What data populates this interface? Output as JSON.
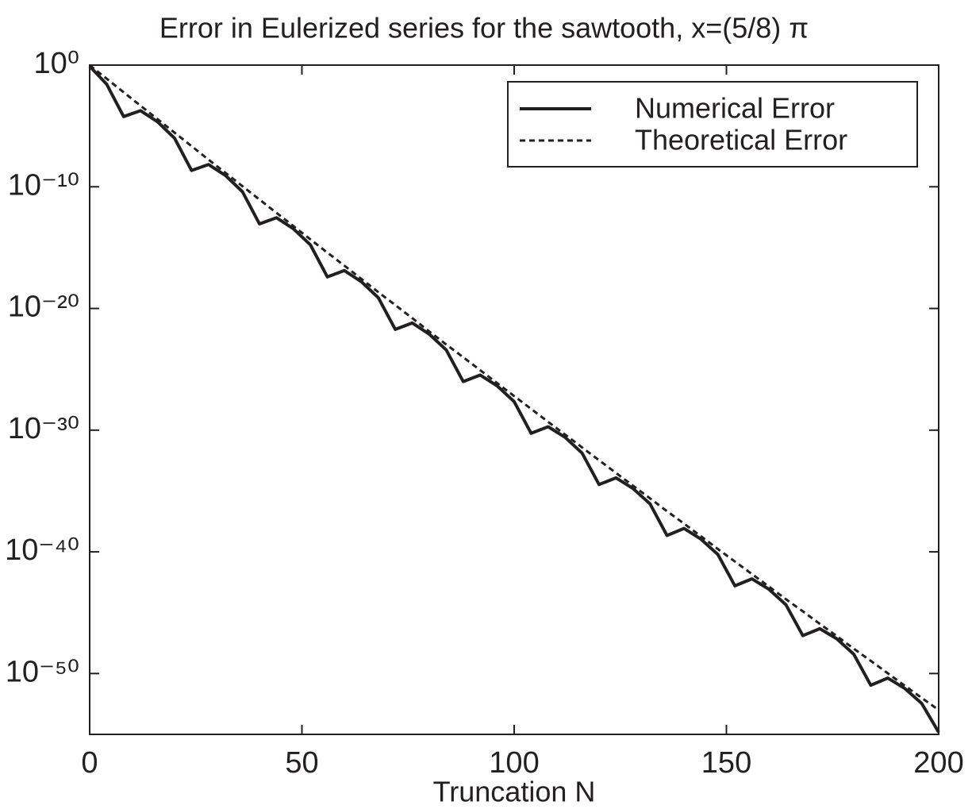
{
  "chart_data": {
    "type": "line",
    "title": "Error in Eulerized series for the sawtooth, x=(5/8) π",
    "x_label": "Truncation N",
    "x": [
      0,
      4,
      8,
      12,
      16,
      20,
      24,
      28,
      32,
      36,
      40,
      44,
      48,
      52,
      56,
      60,
      64,
      68,
      72,
      76,
      80,
      84,
      88,
      92,
      96,
      100,
      104,
      108,
      112,
      116,
      120,
      124,
      128,
      132,
      136,
      140,
      144,
      148,
      152,
      156,
      160,
      164,
      168,
      172,
      176,
      180,
      184,
      188,
      192,
      196,
      200
    ],
    "series": [
      {
        "name": "Numerical Error",
        "color": "#231f20",
        "style": "solid",
        "values": [
          0.8,
          0.027,
          5.9e-05,
          0.00018,
          2.2e-05,
          9.8e-07,
          2.2e-09,
          6.8e-09,
          8.4e-10,
          3.9e-11,
          9e-14,
          2.9e-13,
          3.5e-14,
          1.7e-15,
          3.9e-18,
          1.3e-17,
          1.6e-18,
          7.7e-20,
          1.9e-22,
          6.4e-22,
          7.8e-23,
          3.9e-24,
          9.8e-27,
          3.4e-26,
          4.4e-27,
          2.2e-28,
          5.5e-31,
          1.9e-30,
          2.6e-31,
          1.3e-32,
          3.4e-35,
          1.2e-34,
          1.6e-35,
          8.8e-37,
          2.2e-39,
          8.4e-39,
          1.1e-39,
          6e-41,
          1.6e-43,
          6e-43,
          8.4e-44,
          4.6e-45,
          1.3e-47,
          4.8e-47,
          7.2e-48,
          3.9e-49,
          1.1e-51,
          4.2e-51,
          6e-52,
          3.5e-53,
          1.5e-55
        ]
      },
      {
        "name": "Theoretical Error",
        "color": "#231f20",
        "style": "dashed",
        "values": [
          1,
          0.077,
          0.0059,
          0.00046,
          3.6e-05,
          2.8e-06,
          2.2e-07,
          1.7e-08,
          1.4e-09,
          1.1e-10,
          9e-12,
          7.2e-13,
          5.9e-14,
          4.8e-15,
          3.9e-16,
          3.3e-17,
          2.7e-18,
          2.2e-19,
          1.9e-20,
          1.6e-21,
          1.3e-22,
          1.1e-23,
          9.8e-25,
          8.4e-26,
          7.3e-27,
          6.3e-28,
          5.5e-29,
          4.8e-30,
          4.3e-31,
          3.8e-32,
          3.4e-33,
          3e-34,
          2.7e-35,
          2.5e-36,
          2.2e-37,
          2.1e-38,
          1.9e-39,
          1.7e-40,
          1.6e-41,
          1.5e-42,
          1.4e-43,
          1.3e-44,
          1.3e-45,
          1.2e-46,
          1.2e-47,
          1.1e-48,
          1.1e-49,
          1.05e-50,
          1e-51,
          1e-52,
          1e-53
        ]
      }
    ],
    "xlim": [
      0,
      200
    ],
    "xticks": [
      0,
      50,
      100,
      150,
      200
    ],
    "ylim": [
      1e-55,
      1
    ],
    "ylog": true,
    "yticks": [
      {
        "value": 1,
        "label": "10⁰"
      },
      {
        "value": 1e-10,
        "label": "10⁻¹⁰"
      },
      {
        "value": 1e-20,
        "label": "10⁻²⁰"
      },
      {
        "value": 1e-30,
        "label": "10⁻³⁰"
      },
      {
        "value": 1e-40,
        "label": "10⁻⁴⁰"
      },
      {
        "value": 1e-50,
        "label": "10⁻⁵⁰"
      }
    ],
    "grid": false,
    "legend": "upper right"
  }
}
